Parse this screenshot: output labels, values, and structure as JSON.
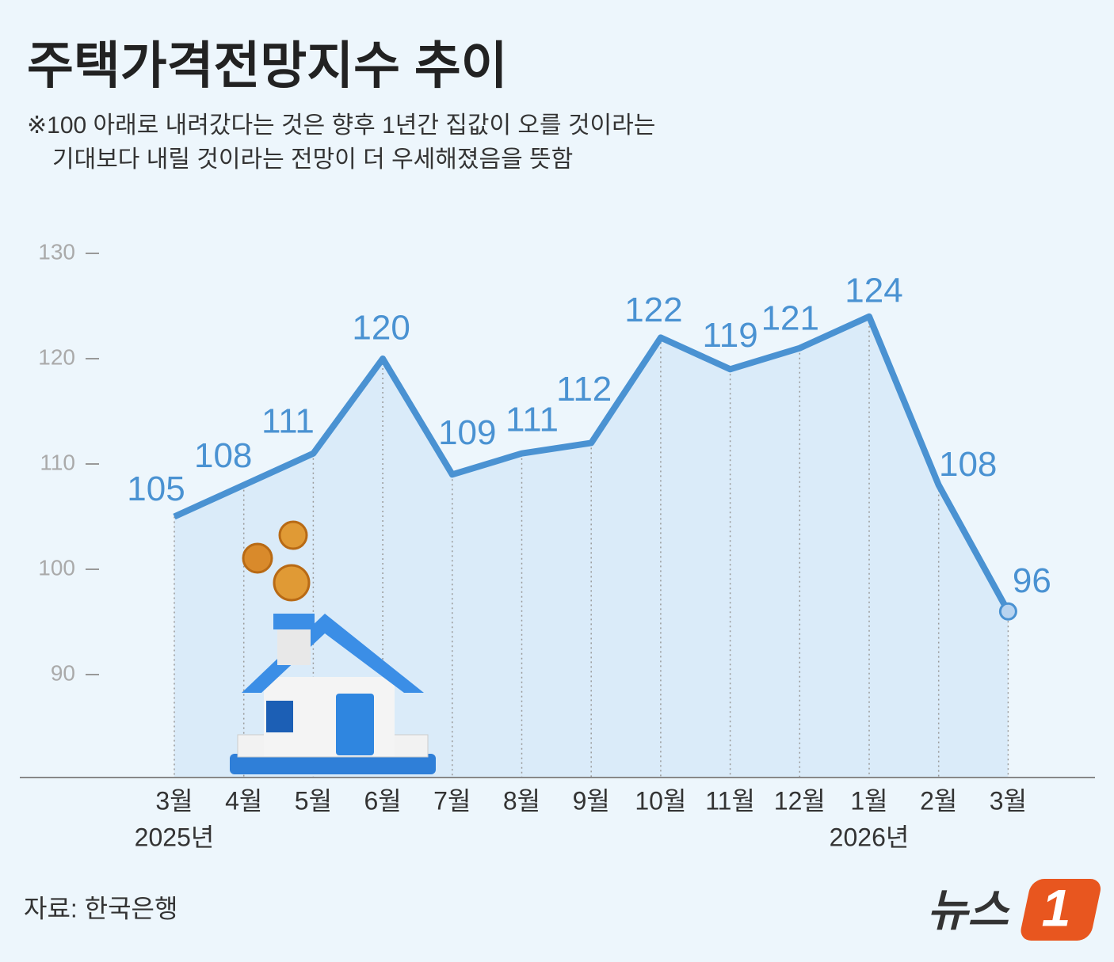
{
  "chart_data": {
    "type": "line",
    "title": "주택가격전망지수 추이",
    "subtitle": [
      "※100 아래로 내려갔다는 것은 향후 1년간 집값이 오를 것이라는",
      "기대보다 내릴 것이라는 전망이 더 우세해졌음을 뜻함"
    ],
    "categories": [
      "3월",
      "4월",
      "5월",
      "6월",
      "7월",
      "8월",
      "9월",
      "10월",
      "11월",
      "12월",
      "1월",
      "2월",
      "3월"
    ],
    "year_labels": [
      "2025년",
      null,
      null,
      null,
      null,
      null,
      null,
      null,
      null,
      null,
      "2026년",
      null,
      null
    ],
    "values": [
      105,
      108,
      111,
      120,
      109,
      111,
      112,
      122,
      119,
      121,
      124,
      108,
      96
    ],
    "color": "#4a92d2",
    "ylim": [
      80,
      130
    ],
    "yticks": [
      90,
      100,
      110,
      120,
      130
    ],
    "source": "자료: 한국은행",
    "logo": [
      "뉴스",
      "1"
    ]
  }
}
